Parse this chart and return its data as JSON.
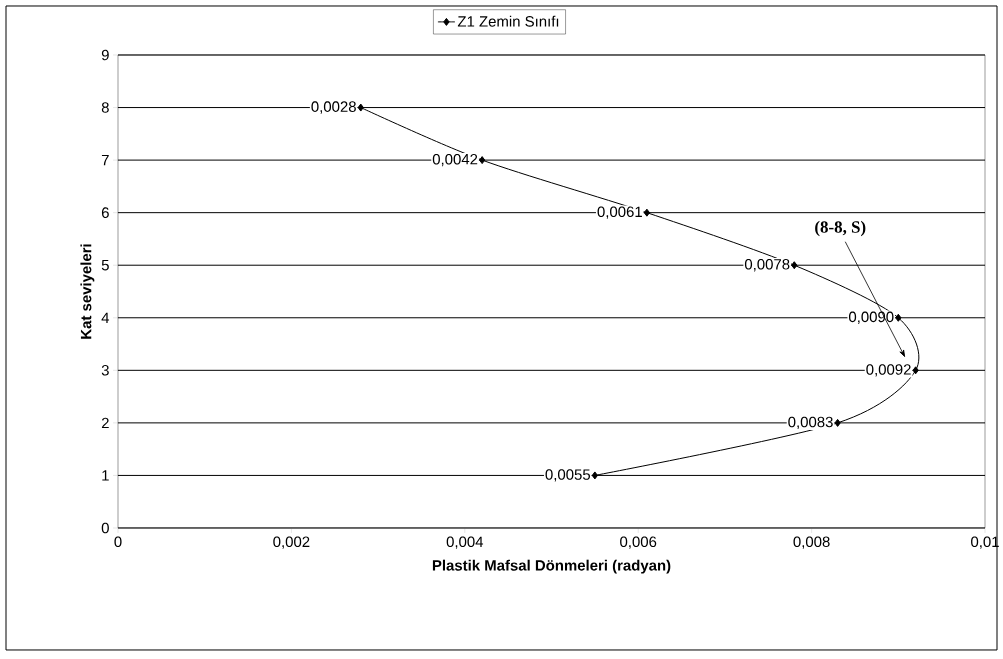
{
  "chart_data": {
    "type": "line",
    "xlabel": "Plastik Mafsal Dönmeleri (radyan)",
    "ylabel": "Kat seviyeleri",
    "series": [
      {
        "name": "Z1 Zemin Sınıfı",
        "color": "#000000",
        "x": [
          0.0055,
          0.0083,
          0.0092,
          0.009,
          0.0078,
          0.0061,
          0.0042,
          0.0028
        ],
        "values": [
          1,
          2,
          3,
          4,
          5,
          6,
          7,
          8
        ]
      }
    ],
    "xlim": [
      0,
      0.01
    ],
    "ylim": [
      0,
      9
    ],
    "xticks": [
      0,
      {
        "value": 0.002,
        "label": "0,002"
      },
      {
        "value": 0.004,
        "label": "0,004"
      },
      {
        "value": 0.006,
        "label": "0,006"
      },
      {
        "value": 0.008,
        "label": "0,008"
      },
      {
        "value": 0.01,
        "label": "0,01"
      }
    ],
    "yticks": [
      0,
      1,
      2,
      3,
      4,
      5,
      6,
      7,
      8,
      9
    ],
    "annotations": [
      "(8-8, S)",
      {
        "text": "0,0055",
        "x": 0.0055,
        "y": 1
      },
      {
        "text": "0,0083",
        "x": 0.0083,
        "y": 2
      },
      {
        "text": "0,0092",
        "x": 0.0092,
        "y": 3
      },
      {
        "text": "0,0090",
        "x": 0.009,
        "y": 4
      },
      {
        "text": "0,0078",
        "x": 0.0078,
        "y": 5
      },
      {
        "text": "0,0061",
        "x": 0.0061,
        "y": 6
      },
      {
        "text": "0,0042",
        "x": 0.0042,
        "y": 7
      },
      {
        "text": "0,0028",
        "x": 0.0028,
        "y": 8
      }
    ],
    "grid": "y",
    "legend": "top",
    "marker": "diamond",
    "line_style": "solid"
  }
}
